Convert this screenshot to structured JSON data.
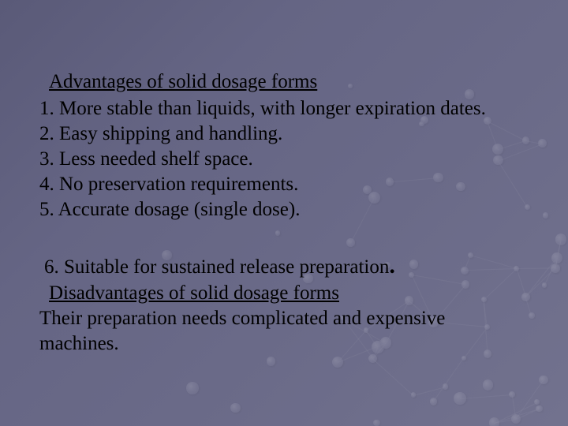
{
  "colors": {
    "background_gradient": [
      "#5a5a78",
      "#656584",
      "#6a6a88",
      "#72728e"
    ],
    "text": "#000000",
    "dot_highlight": "#ffffff",
    "dot_mid": "#c0c0d0",
    "dot_shadow": "#808098"
  },
  "typography": {
    "font_family": "Times New Roman",
    "body_fontsize": 25,
    "line_height": 1.28
  },
  "decor": {
    "dot_count": 60,
    "dot_opacity": 0.15,
    "dot_size_min": 6,
    "dot_size_max": 16
  },
  "heading1": "Advantages of solid dosage forms",
  "items": {
    "i1": "1. More stable than liquids, with longer expiration dates.",
    "i2": "2. Easy shipping and handling.",
    "i3": "3. Less needed shelf space.",
    "i4": "4. No preservation requirements.",
    "i5": "5. Accurate dosage (single dose)."
  },
  "item6": "6. Suitable for sustained release preparation",
  "item6_period": ".",
  "heading2": "Disadvantages of solid dosage forms",
  "disadvantage": "Their preparation needs complicated and expensive machines."
}
